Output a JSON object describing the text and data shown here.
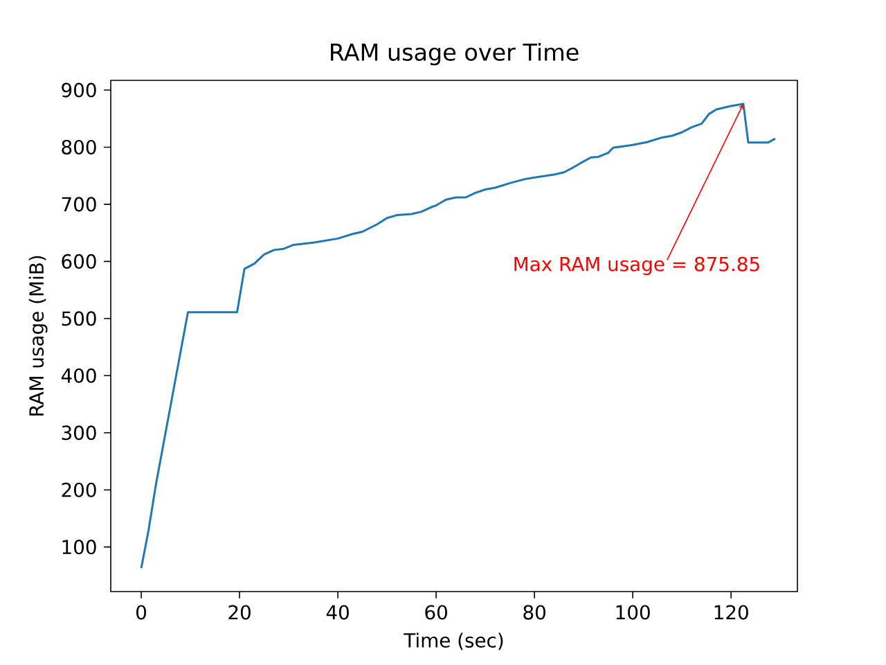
{
  "chart_data": {
    "type": "line",
    "title": "RAM usage over Time",
    "xlabel": "Time (sec)",
    "ylabel": "RAM usage (MiB)",
    "x": [
      0,
      1.5,
      3,
      9.5,
      19.5,
      21,
      23,
      25,
      27,
      29,
      31,
      35,
      40,
      43,
      45,
      48,
      50,
      52,
      55,
      57,
      59,
      60,
      62,
      64,
      66,
      68,
      70,
      72,
      75,
      78,
      80,
      84,
      86,
      88,
      90,
      91.5,
      93,
      95,
      96,
      100,
      103,
      106,
      108,
      110,
      112,
      114,
      115.5,
      117,
      120,
      122.5,
      123.5,
      127.5,
      129
    ],
    "series": [
      {
        "color": "#1f77b4",
        "values": [
          63,
          130,
          210,
          511,
          511,
          587,
          596,
          612,
          620,
          622,
          629,
          633,
          640,
          648,
          652,
          665,
          676,
          681,
          683,
          687,
          695,
          698,
          708,
          712,
          712,
          720,
          726,
          729,
          737,
          744,
          747,
          752,
          756,
          765,
          775,
          782,
          783,
          790,
          799,
          804,
          809,
          817,
          820,
          826,
          835,
          841,
          858,
          866,
          872,
          875.85,
          808,
          808,
          815
        ]
      }
    ],
    "xlim": [
      -6.2,
      133.5
    ],
    "ylim": [
      22,
      917
    ],
    "xticks": [
      0,
      20,
      40,
      60,
      80,
      100,
      120
    ],
    "yticks": [
      100,
      200,
      300,
      400,
      500,
      600,
      700,
      800,
      900
    ],
    "grid": false,
    "marker": "none",
    "line_style": "solid",
    "annotations": [
      {
        "text": "Max RAM usage = 875.85",
        "x": 122.5,
        "y": 875.85
      }
    ]
  }
}
